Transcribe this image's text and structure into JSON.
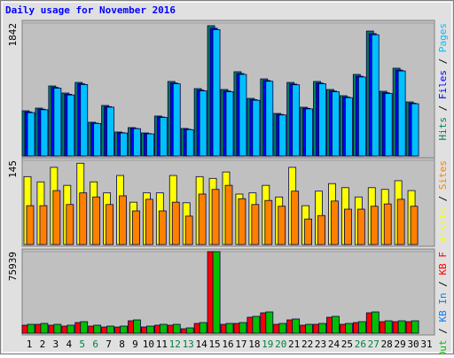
{
  "chart_data": {
    "type": "bar",
    "title": "Daily usage for November 2016",
    "title_color": "#0000ff",
    "categories": [
      "1",
      "2",
      "3",
      "4",
      "5",
      "6",
      "7",
      "8",
      "9",
      "10",
      "11",
      "12",
      "13",
      "14",
      "15",
      "16",
      "17",
      "18",
      "19",
      "20",
      "21",
      "22",
      "23",
      "24",
      "25",
      "26",
      "27",
      "28",
      "29",
      "30",
      "31"
    ],
    "category_colors": [
      "#000000",
      "#000000",
      "#000000",
      "#000000",
      "#008040",
      "#008040",
      "#000000",
      "#000000",
      "#000000",
      "#000000",
      "#000000",
      "#008040",
      "#008040",
      "#000000",
      "#000000",
      "#000000",
      "#000000",
      "#000000",
      "#008040",
      "#008040",
      "#000000",
      "#000000",
      "#000000",
      "#000000",
      "#000000",
      "#008040",
      "#008040",
      "#000000",
      "#000000",
      "#000000",
      "#000000"
    ],
    "legend_separator": " / ",
    "panels": [
      {
        "ylim": [
          0,
          1842
        ],
        "yticks": [
          1842
        ],
        "legend_reversed": true,
        "series": [
          {
            "name": "Hits",
            "color": "#00805c",
            "values": [
              626,
              663,
              970,
              872,
              1019,
              467,
              700,
              332,
              393,
              319,
              553,
              1032,
              381,
              933,
              1805,
              921,
              1167,
              798,
              1068,
              589,
              1019,
              675,
              1032,
              921,
              835,
              1130,
              1731,
              896,
              1216,
              749,
              0
            ]
          },
          {
            "name": "Files",
            "color": "#0000ff",
            "values": [
              610,
              648,
              950,
              855,
              1000,
              455,
              684,
              322,
              382,
              310,
              540,
              1010,
              370,
              912,
              1770,
              900,
              1142,
              780,
              1045,
              575,
              996,
              660,
              1010,
              900,
              816,
              1105,
              1695,
              876,
              1190,
              732,
              0
            ]
          },
          {
            "name": "Pages",
            "color": "#00c0ff",
            "values": [
              600,
              640,
              940,
              845,
              990,
              450,
              676,
              318,
              378,
              306,
              534,
              1000,
              365,
              902,
              1750,
              890,
              1130,
              772,
              1035,
              568,
              986,
              652,
              1000,
              890,
              808,
              1094,
              1680,
              866,
              1178,
              724,
              0
            ]
          }
        ]
      },
      {
        "ylim": [
          0,
          145
        ],
        "yticks": [
          145
        ],
        "legend_reversed": true,
        "series": [
          {
            "name": "Visits",
            "color": "#ffff00",
            "values": [
              117,
              108,
              133,
              102,
              140,
              108,
              89,
              119,
              73,
              89,
              89,
              119,
              72,
              117,
              114,
              125,
              87,
              89,
              102,
              82,
              133,
              67,
              92,
              105,
              98,
              82,
              98,
              95,
              110,
              93,
              0
            ]
          },
          {
            "name": "Sites",
            "color": "#ff8000",
            "values": [
              67,
              67,
              93,
              69,
              89,
              82,
              69,
              84,
              58,
              78,
              58,
              73,
              49,
              87,
              95,
              102,
              79,
              69,
              76,
              66,
              92,
              44,
              50,
              75,
              61,
              61,
              66,
              70,
              78,
              66,
              0
            ]
          }
        ]
      },
      {
        "ylim": [
          0,
          75939
        ],
        "yticks": [
          75939
        ],
        "legend_reversed": false,
        "series": [
          {
            "name": "KB F",
            "color": "#ff0000",
            "values": [
              7425,
              8250,
              7425,
              6600,
              9900,
              6600,
              5775,
              5775,
              11550,
              5775,
              7425,
              7425,
              4125,
              9075,
              75939,
              8250,
              9075,
              14850,
              18975,
              8250,
              12375,
              7425,
              8250,
              14850,
              8250,
              9900,
              18975,
              10725,
              10725,
              10725,
              0
            ]
          },
          {
            "name": "KB In",
            "color": "#0080ff",
            "values": [
              0,
              0,
              0,
              0,
              0,
              0,
              0,
              0,
              0,
              0,
              0,
              0,
              0,
              0,
              0,
              0,
              0,
              0,
              0,
              0,
              0,
              0,
              0,
              0,
              0,
              0,
              0,
              0,
              0,
              0,
              0
            ]
          },
          {
            "name": "KB Out",
            "color": "#00c000",
            "values": [
              8250,
              9075,
              8250,
              7425,
              10725,
              7425,
              6600,
              6600,
              12375,
              6600,
              8250,
              8250,
              4950,
              9900,
              75939,
              9075,
              9900,
              15675,
              19800,
              9075,
              13200,
              8250,
              9075,
              15675,
              9075,
              10725,
              19800,
              11550,
              11550,
              11550,
              0
            ]
          }
        ]
      }
    ]
  }
}
